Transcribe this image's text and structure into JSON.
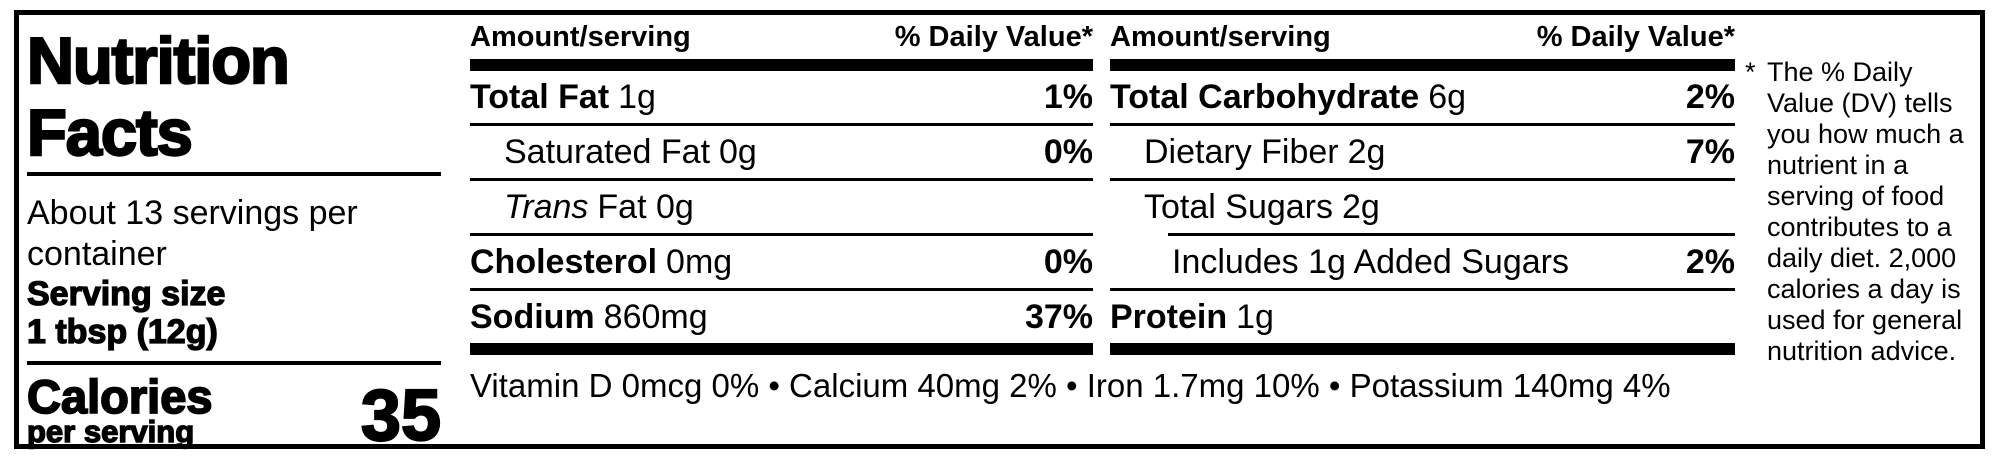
{
  "left_panel": {
    "title_line1": "Nutrition",
    "title_line2": "Facts",
    "servings_per_container": "About 13 servings per container",
    "serving_size_label": "Serving size",
    "serving_size_value": "1 tbsp (12g)",
    "calories_label": "Calories",
    "calories_sublabel": "per serving",
    "calories_value": "35"
  },
  "columns": [
    {
      "header": {
        "amount_label": "Amount/serving",
        "dv_label": "% Daily Value*"
      },
      "rows": [
        {
          "name": "Total Fat",
          "amount": "1g",
          "dv": "1%"
        },
        {
          "name": "Saturated Fat",
          "amount": "0g",
          "dv": "0%"
        },
        {
          "name": "Trans",
          "amount": "Fat 0g",
          "dv": ""
        },
        {
          "name": "Cholesterol",
          "amount": "0mg",
          "dv": "0%"
        },
        {
          "name": "Sodium",
          "amount": "860mg",
          "dv": "37%"
        }
      ]
    },
    {
      "header": {
        "amount_label": "Amount/serving",
        "dv_label": "% Daily Value*"
      },
      "rows": [
        {
          "name": "Total Carbohydrate",
          "amount": "6g",
          "dv": "2%"
        },
        {
          "name": "Dietary Fiber",
          "amount": "2g",
          "dv": "7%"
        },
        {
          "name": "Total Sugars",
          "amount": "2g",
          "dv": ""
        },
        {
          "name": "Includes 1g Added Sugars",
          "amount": "",
          "dv": "2%"
        },
        {
          "name": "Protein",
          "amount": "1g",
          "dv": ""
        }
      ]
    }
  ],
  "micronutrients": "Vitamin D 0mcg 0% • Calcium 40mg 2% • Iron 1.7mg 10% • Potassium 140mg 4%",
  "footnote": {
    "marker": "*",
    "text": "The % Daily Value (DV) tells you how much a nutrient in a serving of food contributes to a daily diet. 2,000 calories a day is used for general nutrition advice."
  },
  "colors": {
    "ink": "#000000",
    "background": "#ffffff"
  }
}
